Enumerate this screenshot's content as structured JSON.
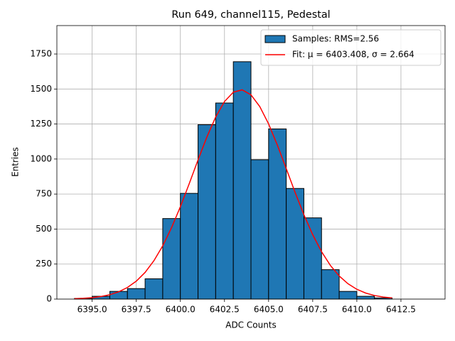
{
  "chart_data": {
    "type": "histogram",
    "title": "Run 649, channel115, Pedestal",
    "xlabel": "ADC Counts",
    "ylabel": "Entries",
    "bins": [
      6394,
      6395,
      6396,
      6397,
      6398,
      6399,
      6400,
      6401,
      6402,
      6403,
      6404,
      6405,
      6406,
      6407,
      6408,
      6409,
      6410,
      6411,
      6412,
      6413,
      6414
    ],
    "series": [
      {
        "name": "Samples: RMS=2.56",
        "color": "#1f77b4",
        "type": "histogram",
        "values": [
          5,
          20,
          55,
          75,
          145,
          575,
          755,
          1245,
          1400,
          1695,
          995,
          1215,
          790,
          580,
          210,
          55,
          20,
          8,
          0,
          0
        ]
      },
      {
        "name": "Fit: μ = 6403.408, σ = 2.664",
        "color": "#ff0000",
        "type": "line",
        "x": [
          6394,
          6394.5,
          6395,
          6395.5,
          6396,
          6396.5,
          6397,
          6397.5,
          6398,
          6398.5,
          6399,
          6399.5,
          6400,
          6400.5,
          6401,
          6401.5,
          6402,
          6402.5,
          6403,
          6403.5,
          6404,
          6404.5,
          6405,
          6405.5,
          6406,
          6406.5,
          6407,
          6407.5,
          6408,
          6408.5,
          6409,
          6409.5,
          6410,
          6410.5,
          6411,
          6411.5,
          6412
        ],
        "values": [
          2.9,
          5.6,
          10.3,
          18.2,
          31.3,
          51.8,
          82.9,
          128,
          190.5,
          273.9,
          380.3,
          509.8,
          659.7,
          823.9,
          993.7,
          1156.8,
          1300.1,
          1410.7,
          1477.5,
          1494.1,
          1458.5,
          1374.5,
          1250.6,
          1098.4,
          931.4,
          762.3,
          602.3,
          459.6,
          338.3,
          240.5,
          165.2,
          109.4,
          70,
          43.2,
          25.7,
          14.8,
          8.2
        ]
      }
    ],
    "xlim": [
      6393,
      6415
    ],
    "ylim": [
      0,
      1953
    ],
    "xticks": [
      {
        "value": 6395,
        "label": "6395.0"
      },
      {
        "value": 6397.5,
        "label": "6397.5"
      },
      {
        "value": 6400,
        "label": "6400.0"
      },
      {
        "value": 6402.5,
        "label": "6402.5"
      },
      {
        "value": 6405,
        "label": "6405.0"
      },
      {
        "value": 6407.5,
        "label": "6407.5"
      },
      {
        "value": 6410,
        "label": "6410.0"
      },
      {
        "value": 6412.5,
        "label": "6412.5"
      }
    ],
    "yticks": [
      0,
      250,
      500,
      750,
      1000,
      1250,
      1500,
      1750
    ],
    "grid": true,
    "legend": "upper right"
  }
}
